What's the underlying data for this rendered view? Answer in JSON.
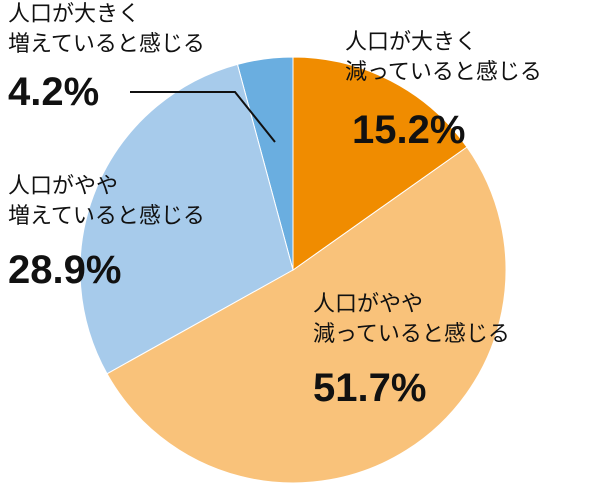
{
  "chart_data": {
    "type": "pie",
    "categories": [
      "人口が大きく\n減っていると感じる",
      "人口がやや\n減っていると感じる",
      "人口がやや\n増えていると感じる",
      "人口が大きく\n増えていると感じる"
    ],
    "values": [
      15.2,
      51.7,
      28.9,
      4.2
    ],
    "value_labels": [
      "15.2%",
      "51.7%",
      "28.9%",
      "4.2%"
    ],
    "colors": [
      "#f08c00",
      "#f9c27a",
      "#a7cbeb",
      "#6aaee0"
    ]
  }
}
